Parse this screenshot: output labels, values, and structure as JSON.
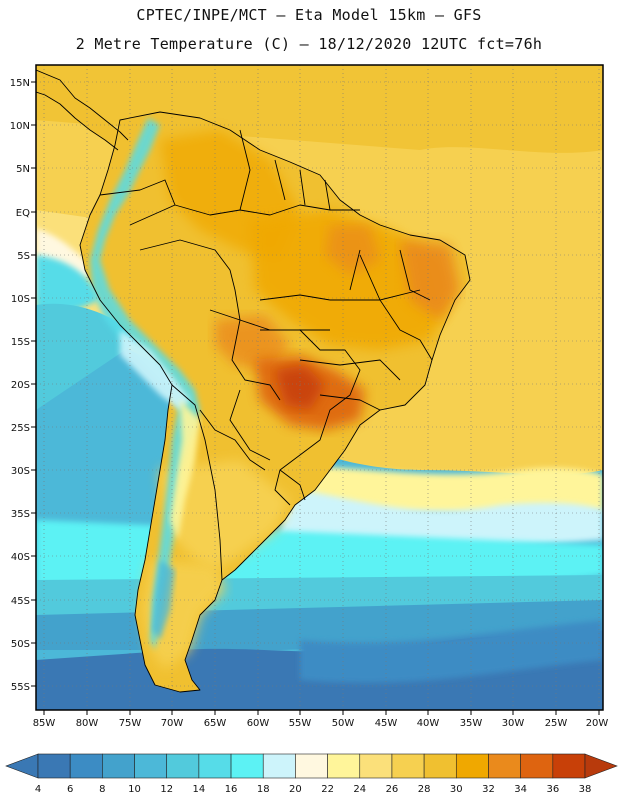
{
  "header": {
    "line1": "CPTEC/INPE/MCT –  Eta Model 15km – GFS",
    "line2": "2 Metre Temperature (C) – 18/12/2020 12UTC fct=76h"
  },
  "map": {
    "region": "South America",
    "lat_labels": [
      "15N",
      "10N",
      "5N",
      "EQ",
      "5S",
      "10S",
      "15S",
      "20S",
      "25S",
      "30S",
      "35S",
      "40S",
      "45S",
      "50S",
      "55S"
    ],
    "lon_labels": [
      "85W",
      "80W",
      "75W",
      "70W",
      "65W",
      "60W",
      "55W",
      "50W",
      "45W",
      "40W",
      "35W",
      "30W",
      "25W",
      "20W"
    ],
    "lat_range": [
      -57.5,
      16
    ],
    "lon_range": [
      -86,
      -20
    ]
  },
  "colorbar": {
    "labels": [
      "4",
      "6",
      "8",
      "10",
      "12",
      "14",
      "16",
      "18",
      "20",
      "22",
      "24",
      "26",
      "28",
      "30",
      "32",
      "34",
      "36",
      "38"
    ],
    "colors": {
      "below_min": "#3a78b4",
      "bins": [
        "#3a78b4",
        "#3c8cc4",
        "#43a2cc",
        "#4cb8d8",
        "#52cadc",
        "#56dce8",
        "#5cf2f4",
        "#cdf4fb",
        "#fff8e0",
        "#fff59a",
        "#fbe07a",
        "#f6d050",
        "#f0c030",
        "#f0a800",
        "#ea8a1c",
        "#de6410",
        "#c84008"
      ],
      "above_max": "#b83a0c"
    }
  }
}
